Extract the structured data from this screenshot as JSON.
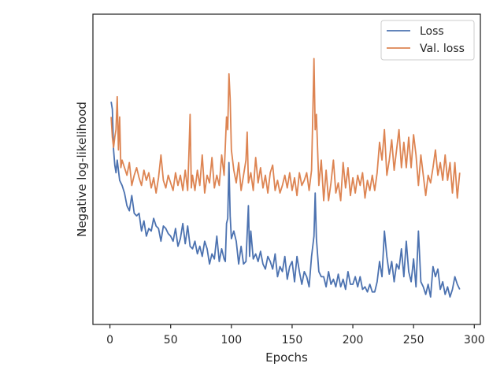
{
  "chart_data": {
    "type": "line",
    "title": "",
    "xlabel": "Epochs",
    "ylabel": "Negative log-likelihood",
    "xlim": [
      -14,
      305
    ],
    "ylim": [
      0,
      100
    ],
    "xticks": [
      0,
      50,
      100,
      150,
      200,
      250,
      300
    ],
    "yticks_shown": false,
    "grid": false,
    "legend_position": "top-right",
    "series": [
      {
        "name": "Loss",
        "color": "#4c72b0",
        "points": [
          [
            1,
            81
          ],
          [
            2,
            78
          ],
          [
            3,
            62
          ],
          [
            4,
            56
          ],
          [
            5,
            53
          ],
          [
            6,
            58
          ],
          [
            8,
            50
          ],
          [
            10,
            48
          ],
          [
            12,
            45
          ],
          [
            14,
            40
          ],
          [
            16,
            38
          ],
          [
            18,
            44
          ],
          [
            20,
            37
          ],
          [
            22,
            36
          ],
          [
            24,
            37
          ],
          [
            26,
            30
          ],
          [
            28,
            34
          ],
          [
            30,
            28
          ],
          [
            32,
            31
          ],
          [
            34,
            30
          ],
          [
            36,
            35
          ],
          [
            38,
            32
          ],
          [
            40,
            31
          ],
          [
            42,
            26
          ],
          [
            44,
            32
          ],
          [
            46,
            31
          ],
          [
            48,
            29
          ],
          [
            50,
            28
          ],
          [
            52,
            26
          ],
          [
            54,
            31
          ],
          [
            56,
            24
          ],
          [
            58,
            27
          ],
          [
            60,
            33
          ],
          [
            62,
            25
          ],
          [
            64,
            32
          ],
          [
            66,
            24
          ],
          [
            68,
            23
          ],
          [
            70,
            26
          ],
          [
            72,
            21
          ],
          [
            74,
            24
          ],
          [
            76,
            20
          ],
          [
            78,
            26
          ],
          [
            80,
            23
          ],
          [
            82,
            17
          ],
          [
            84,
            21
          ],
          [
            86,
            19
          ],
          [
            88,
            28
          ],
          [
            90,
            18
          ],
          [
            92,
            23
          ],
          [
            94,
            19
          ],
          [
            95,
            18
          ],
          [
            96,
            33
          ],
          [
            97,
            35
          ],
          [
            98,
            57
          ],
          [
            99,
            36
          ],
          [
            100,
            27
          ],
          [
            102,
            30
          ],
          [
            104,
            26
          ],
          [
            106,
            17
          ],
          [
            108,
            24
          ],
          [
            110,
            17
          ],
          [
            112,
            18
          ],
          [
            114,
            40
          ],
          [
            115,
            20
          ],
          [
            116,
            30
          ],
          [
            118,
            19
          ],
          [
            120,
            21
          ],
          [
            122,
            18
          ],
          [
            124,
            22
          ],
          [
            126,
            17
          ],
          [
            128,
            15
          ],
          [
            130,
            20
          ],
          [
            132,
            18
          ],
          [
            134,
            15
          ],
          [
            136,
            21
          ],
          [
            138,
            12
          ],
          [
            140,
            16
          ],
          [
            142,
            14
          ],
          [
            144,
            20
          ],
          [
            146,
            11
          ],
          [
            148,
            16
          ],
          [
            150,
            18
          ],
          [
            152,
            10
          ],
          [
            154,
            20
          ],
          [
            156,
            14
          ],
          [
            158,
            9
          ],
          [
            160,
            14
          ],
          [
            162,
            12
          ],
          [
            164,
            8
          ],
          [
            166,
            20
          ],
          [
            168,
            28
          ],
          [
            169,
            45
          ],
          [
            170,
            27
          ],
          [
            172,
            14
          ],
          [
            174,
            12
          ],
          [
            176,
            12
          ],
          [
            178,
            8
          ],
          [
            180,
            14
          ],
          [
            182,
            9
          ],
          [
            184,
            11
          ],
          [
            186,
            8
          ],
          [
            188,
            13
          ],
          [
            190,
            8
          ],
          [
            192,
            11
          ],
          [
            194,
            7
          ],
          [
            196,
            14
          ],
          [
            198,
            9
          ],
          [
            200,
            9
          ],
          [
            202,
            12
          ],
          [
            204,
            8
          ],
          [
            206,
            12
          ],
          [
            208,
            7
          ],
          [
            210,
            8
          ],
          [
            212,
            6
          ],
          [
            214,
            9
          ],
          [
            216,
            6
          ],
          [
            218,
            6
          ],
          [
            220,
            10
          ],
          [
            222,
            18
          ],
          [
            224,
            12
          ],
          [
            226,
            30
          ],
          [
            228,
            20
          ],
          [
            230,
            13
          ],
          [
            232,
            18
          ],
          [
            234,
            10
          ],
          [
            236,
            17
          ],
          [
            238,
            15
          ],
          [
            240,
            23
          ],
          [
            242,
            12
          ],
          [
            244,
            26
          ],
          [
            246,
            14
          ],
          [
            248,
            10
          ],
          [
            250,
            19
          ],
          [
            252,
            8
          ],
          [
            254,
            30
          ],
          [
            256,
            10
          ],
          [
            258,
            8
          ],
          [
            260,
            5
          ],
          [
            262,
            9
          ],
          [
            264,
            4
          ],
          [
            266,
            16
          ],
          [
            268,
            12
          ],
          [
            270,
            15
          ],
          [
            272,
            7
          ],
          [
            274,
            10
          ],
          [
            276,
            5
          ],
          [
            278,
            8
          ],
          [
            280,
            4
          ],
          [
            282,
            7
          ],
          [
            284,
            12
          ],
          [
            286,
            9
          ],
          [
            288,
            7
          ]
        ]
      },
      {
        "name": "Val. loss",
        "color": "#dd8452",
        "points": [
          [
            1,
            75
          ],
          [
            2,
            67
          ],
          [
            3,
            63
          ],
          [
            4,
            67
          ],
          [
            5,
            70
          ],
          [
            6,
            83
          ],
          [
            7,
            62
          ],
          [
            8,
            75
          ],
          [
            9,
            55
          ],
          [
            10,
            58
          ],
          [
            12,
            55
          ],
          [
            14,
            52
          ],
          [
            16,
            57
          ],
          [
            18,
            48
          ],
          [
            20,
            52
          ],
          [
            22,
            55
          ],
          [
            24,
            51
          ],
          [
            26,
            48
          ],
          [
            28,
            54
          ],
          [
            30,
            50
          ],
          [
            32,
            53
          ],
          [
            34,
            47
          ],
          [
            36,
            51
          ],
          [
            38,
            45
          ],
          [
            40,
            51
          ],
          [
            42,
            60
          ],
          [
            44,
            50
          ],
          [
            46,
            47
          ],
          [
            48,
            52
          ],
          [
            50,
            49
          ],
          [
            52,
            46
          ],
          [
            54,
            53
          ],
          [
            56,
            48
          ],
          [
            58,
            52
          ],
          [
            60,
            46
          ],
          [
            62,
            54
          ],
          [
            64,
            46
          ],
          [
            65,
            60
          ],
          [
            66,
            76
          ],
          [
            67,
            47
          ],
          [
            68,
            52
          ],
          [
            70,
            46
          ],
          [
            72,
            54
          ],
          [
            74,
            48
          ],
          [
            76,
            60
          ],
          [
            78,
            45
          ],
          [
            80,
            52
          ],
          [
            82,
            49
          ],
          [
            84,
            59
          ],
          [
            86,
            47
          ],
          [
            88,
            52
          ],
          [
            90,
            48
          ],
          [
            92,
            60
          ],
          [
            94,
            52
          ],
          [
            96,
            75
          ],
          [
            97,
            70
          ],
          [
            98,
            92
          ],
          [
            99,
            82
          ],
          [
            100,
            62
          ],
          [
            102,
            54
          ],
          [
            104,
            49
          ],
          [
            106,
            57
          ],
          [
            108,
            46
          ],
          [
            110,
            52
          ],
          [
            112,
            58
          ],
          [
            113,
            69
          ],
          [
            114,
            49
          ],
          [
            116,
            53
          ],
          [
            118,
            46
          ],
          [
            120,
            59
          ],
          [
            122,
            49
          ],
          [
            124,
            55
          ],
          [
            126,
            47
          ],
          [
            128,
            52
          ],
          [
            130,
            45
          ],
          [
            132,
            53
          ],
          [
            134,
            56
          ],
          [
            136,
            46
          ],
          [
            138,
            50
          ],
          [
            140,
            45
          ],
          [
            142,
            48
          ],
          [
            144,
            52
          ],
          [
            146,
            47
          ],
          [
            148,
            53
          ],
          [
            150,
            46
          ],
          [
            152,
            51
          ],
          [
            154,
            44
          ],
          [
            156,
            53
          ],
          [
            158,
            48
          ],
          [
            160,
            50
          ],
          [
            162,
            53
          ],
          [
            164,
            46
          ],
          [
            166,
            54
          ],
          [
            167,
            75
          ],
          [
            168,
            98
          ],
          [
            169,
            70
          ],
          [
            170,
            76
          ],
          [
            172,
            48
          ],
          [
            174,
            58
          ],
          [
            176,
            42
          ],
          [
            178,
            54
          ],
          [
            180,
            42
          ],
          [
            182,
            49
          ],
          [
            184,
            58
          ],
          [
            186,
            45
          ],
          [
            188,
            49
          ],
          [
            190,
            42
          ],
          [
            192,
            57
          ],
          [
            194,
            47
          ],
          [
            196,
            55
          ],
          [
            198,
            44
          ],
          [
            200,
            51
          ],
          [
            202,
            45
          ],
          [
            204,
            52
          ],
          [
            206,
            48
          ],
          [
            208,
            53
          ],
          [
            210,
            43
          ],
          [
            212,
            50
          ],
          [
            214,
            46
          ],
          [
            216,
            52
          ],
          [
            218,
            46
          ],
          [
            220,
            53
          ],
          [
            222,
            65
          ],
          [
            224,
            58
          ],
          [
            226,
            70
          ],
          [
            228,
            52
          ],
          [
            230,
            58
          ],
          [
            232,
            66
          ],
          [
            234,
            54
          ],
          [
            236,
            62
          ],
          [
            238,
            70
          ],
          [
            240,
            55
          ],
          [
            242,
            65
          ],
          [
            244,
            55
          ],
          [
            246,
            67
          ],
          [
            248,
            55
          ],
          [
            250,
            68
          ],
          [
            252,
            60
          ],
          [
            254,
            48
          ],
          [
            256,
            60
          ],
          [
            258,
            52
          ],
          [
            260,
            44
          ],
          [
            262,
            52
          ],
          [
            264,
            49
          ],
          [
            266,
            55
          ],
          [
            268,
            62
          ],
          [
            270,
            52
          ],
          [
            272,
            57
          ],
          [
            274,
            50
          ],
          [
            276,
            60
          ],
          [
            278,
            50
          ],
          [
            280,
            57
          ],
          [
            282,
            45
          ],
          [
            284,
            57
          ],
          [
            286,
            43
          ],
          [
            288,
            53
          ]
        ]
      }
    ]
  }
}
